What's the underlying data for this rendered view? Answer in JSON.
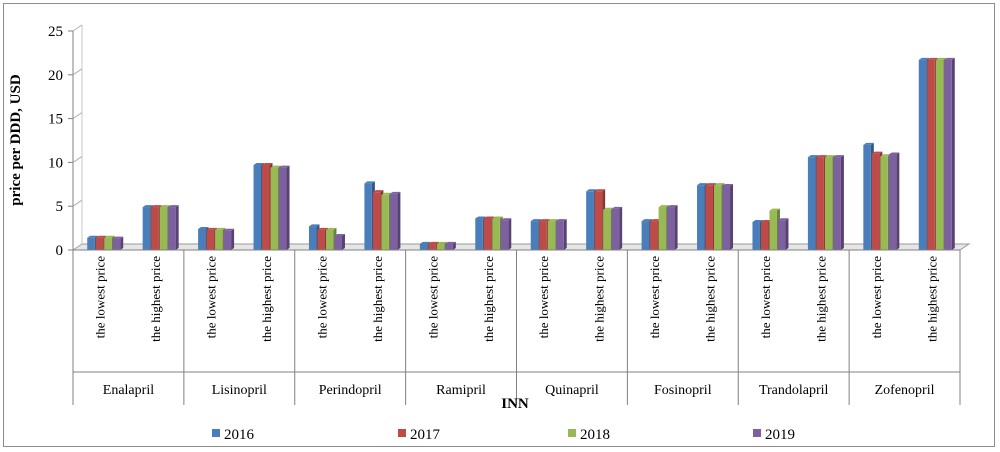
{
  "chart_data": {
    "type": "bar",
    "title": "",
    "xlabel": "INN",
    "ylabel": "price per DDD, USD",
    "ylim": [
      0,
      25
    ],
    "yticks": [
      "0",
      "5",
      "10",
      "15",
      "20",
      "25"
    ],
    "grid": false,
    "legend_position": "bottom",
    "groups": [
      "Enalapril",
      "Lisinopril",
      "Perindopril",
      "Ramipril",
      "Quinapril",
      "Fosinopril",
      "Trandolapril",
      "Zofenopril"
    ],
    "subcategory_labels": [
      "the lowest price",
      "the highest price"
    ],
    "categories": [
      "Enalapril – the lowest price",
      "Enalapril – the highest price",
      "Lisinopril – the lowest price",
      "Lisinopril – the highest price",
      "Perindopril – the lowest price",
      "Perindopril – the highest price",
      "Ramipril – the lowest price",
      "Ramipril – the highest price",
      "Quinapril – the lowest price",
      "Quinapril – the highest price",
      "Fosinopril – the lowest price",
      "Fosinopril – the highest price",
      "Trandolapril – the lowest price",
      "Trandolapril – the highest price",
      "Zofenopril – the lowest price",
      "Zofenopril – the highest price"
    ],
    "series": [
      {
        "name": "2016",
        "color": "#4a7ebb",
        "values": [
          1.4,
          4.9,
          2.4,
          9.7,
          2.7,
          7.6,
          0.7,
          3.6,
          3.3,
          6.7,
          3.3,
          7.4,
          3.2,
          10.6,
          12.0,
          21.7
        ]
      },
      {
        "name": "2017",
        "color": "#be4b48",
        "values": [
          1.4,
          4.9,
          2.3,
          9.7,
          2.3,
          6.6,
          0.7,
          3.6,
          3.3,
          6.7,
          3.3,
          7.4,
          3.2,
          10.6,
          11.0,
          21.7
        ]
      },
      {
        "name": "2018",
        "color": "#98b954",
        "values": [
          1.4,
          4.9,
          2.3,
          9.4,
          2.3,
          6.3,
          0.7,
          3.6,
          3.3,
          4.6,
          4.9,
          7.4,
          4.5,
          10.6,
          10.7,
          21.7
        ]
      },
      {
        "name": "2019",
        "color": "#7d60a0",
        "values": [
          1.3,
          4.9,
          2.2,
          9.4,
          1.6,
          6.4,
          0.7,
          3.4,
          3.3,
          4.7,
          4.9,
          7.3,
          3.4,
          10.6,
          10.9,
          21.7
        ]
      }
    ]
  }
}
